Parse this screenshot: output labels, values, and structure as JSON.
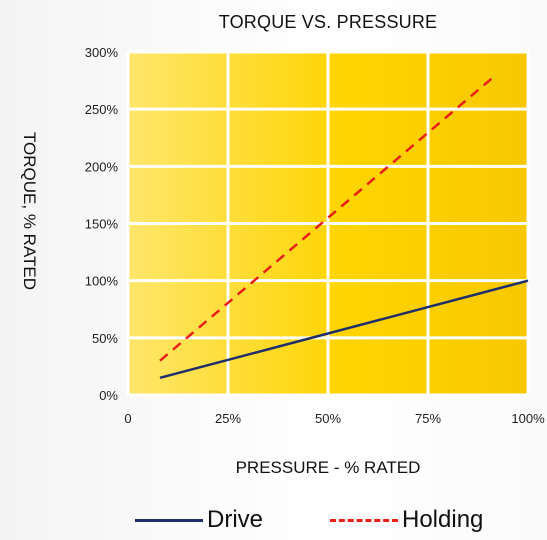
{
  "chart_data": {
    "type": "line",
    "title": "TORQUE VS. PRESSURE",
    "xlabel": "PRESSURE - % RATED",
    "ylabel": "TORQUE, % RATED",
    "x_ticks": [
      "0",
      "25%",
      "50%",
      "75%",
      "100%"
    ],
    "y_ticks": [
      "0%",
      "50%",
      "100%",
      "150%",
      "200%",
      "250%",
      "300%"
    ],
    "xlim": [
      0,
      100
    ],
    "ylim": [
      0,
      300
    ],
    "grid": true,
    "legend_position": "bottom",
    "background_gradient": [
      "#ffe66b",
      "#ffd400",
      "#f7c800"
    ],
    "grid_color": "#ffffff",
    "series": [
      {
        "name": "Drive",
        "style": "solid",
        "color": "#1f2f6b",
        "x": [
          8,
          100
        ],
        "y": [
          15,
          100
        ]
      },
      {
        "name": "Holding",
        "style": "dashed",
        "color": "#e8201a",
        "x": [
          8,
          92
        ],
        "y": [
          30,
          280
        ]
      }
    ]
  },
  "legend": {
    "drive_label": "Drive",
    "holding_label": "Holding"
  }
}
